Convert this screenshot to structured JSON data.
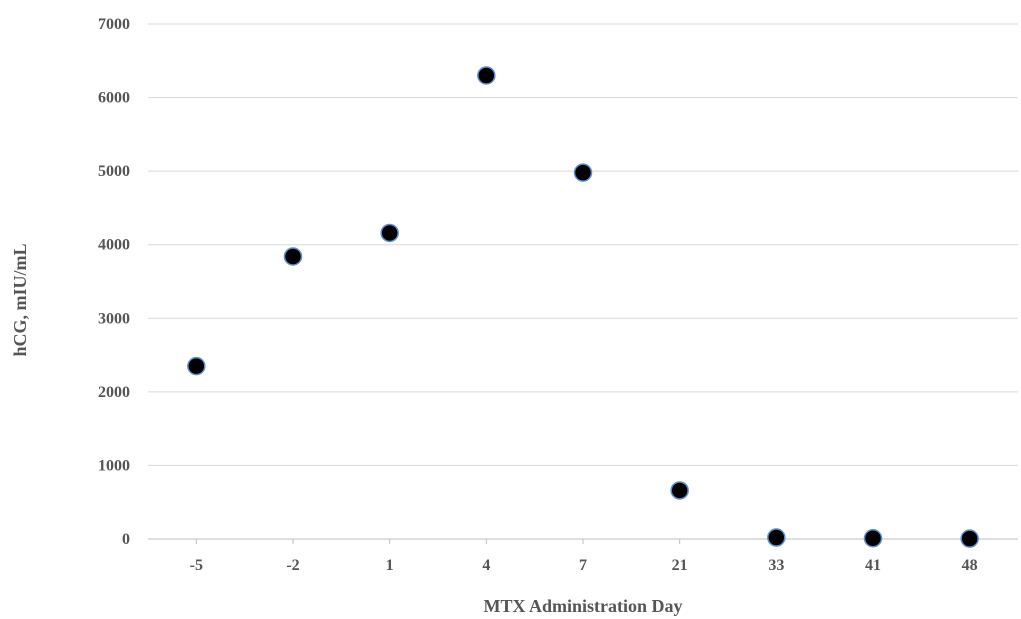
{
  "chart_data": {
    "type": "scatter",
    "title": "",
    "xlabel": "MTX Administration  Day",
    "ylabel": "hCG, mIU/mL",
    "categories": [
      "-5",
      "-2",
      "1",
      "4",
      "7",
      "21",
      "33",
      "41",
      "48"
    ],
    "series": [
      {
        "values": [
          2350,
          3840,
          4160,
          6300,
          4980,
          660,
          20,
          10,
          5
        ]
      }
    ],
    "ylim": [
      0,
      7000
    ],
    "yticks": [
      0,
      1000,
      2000,
      3000,
      4000,
      5000,
      6000,
      7000
    ],
    "grid": true,
    "legend": "none",
    "colors": {
      "marker_fill": "#000000",
      "marker_edge": "#5b8fd6",
      "grid": "#d9d9d9",
      "text": "#555555"
    }
  }
}
